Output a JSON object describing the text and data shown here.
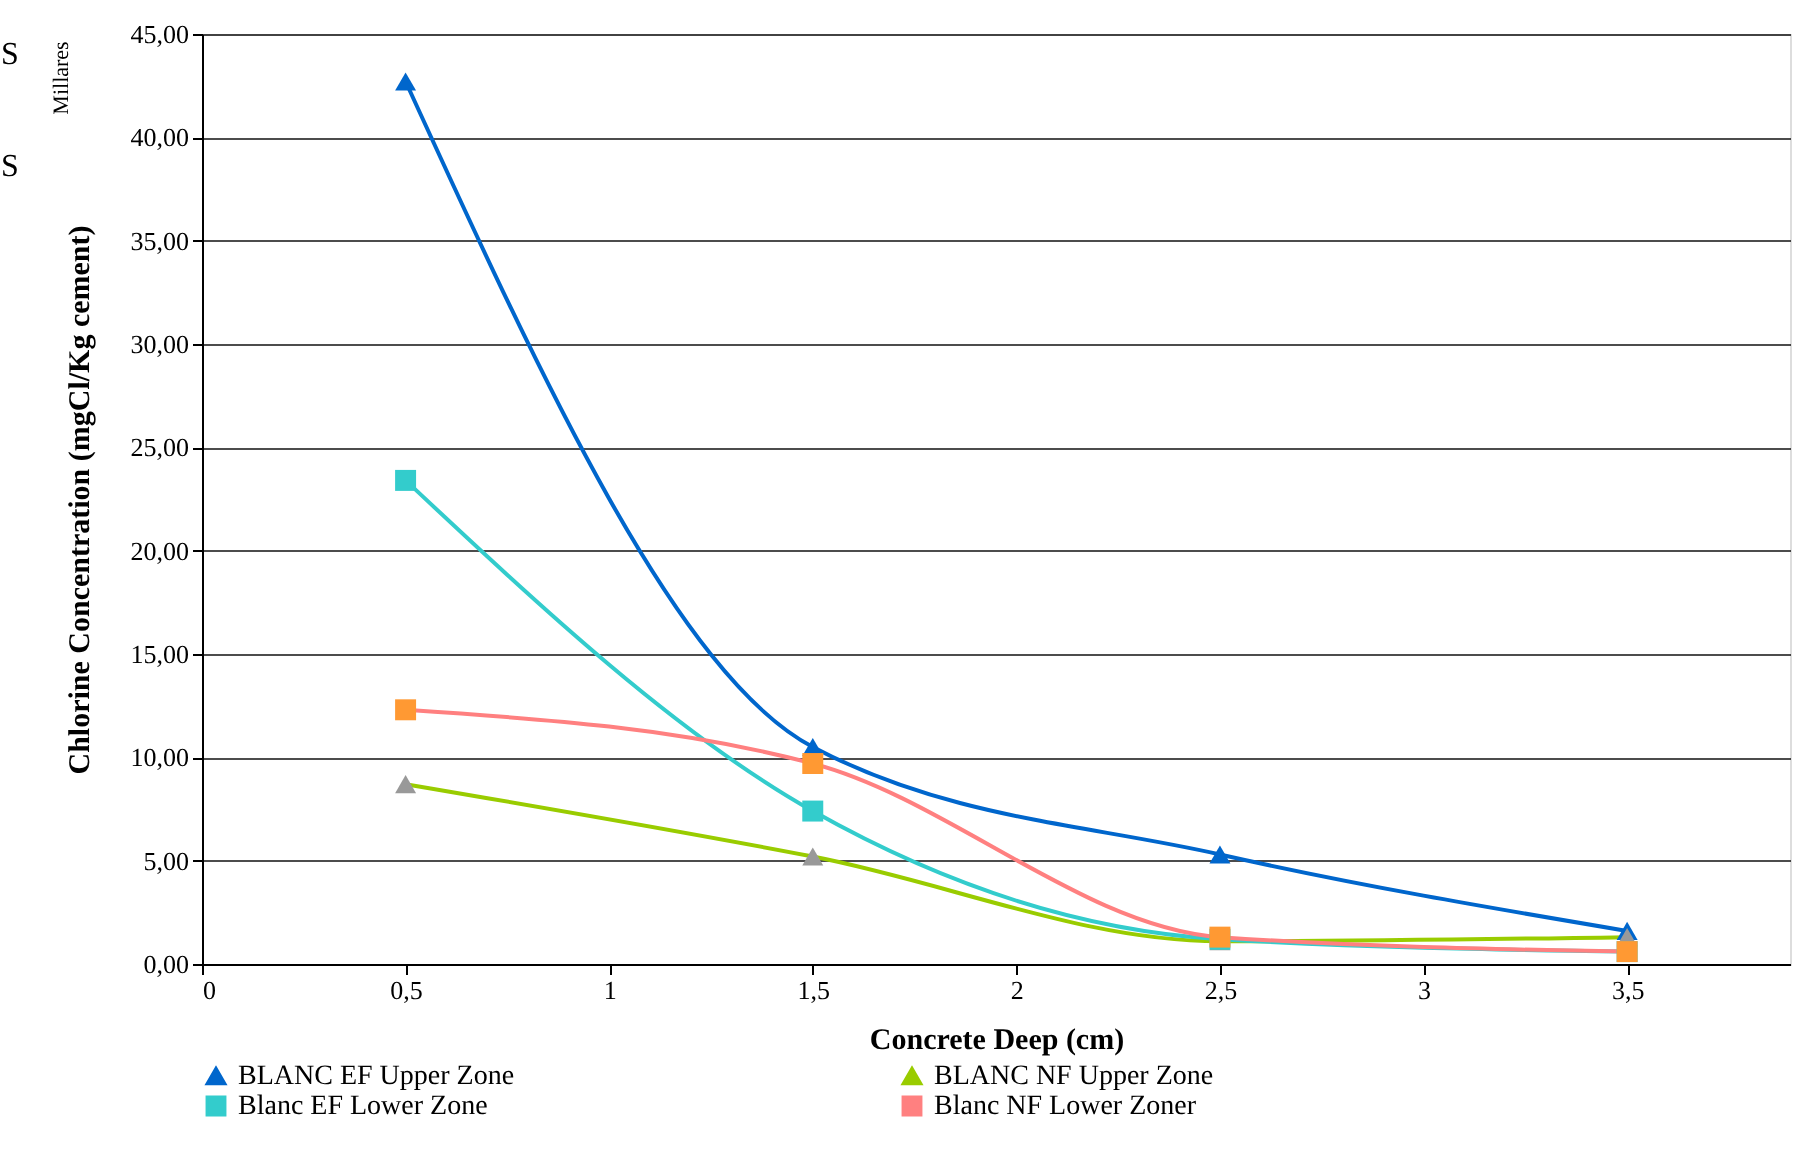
{
  "chart_data": {
    "type": "line",
    "xlabel": "Concrete Deep (cm)",
    "ylabel": "Chlorine Concentration (mgCl/Kg cement)",
    "annotations": [
      "Millares",
      "S",
      "S"
    ],
    "x": [
      0.5,
      1.5,
      2.5,
      3.5
    ],
    "series": [
      {
        "name": "BLANC EF Upper Zone",
        "color": "#0066cc",
        "marker": "triangle",
        "colors": [
          "#0066cc",
          "#0066cc",
          "#0066cc",
          "#0066cc"
        ],
        "values": [
          42.7,
          10.5,
          5.3,
          1.6
        ]
      },
      {
        "name": "BLANC NF Upper Zone",
        "color": "#99cc00",
        "marker": "triangle",
        "colors": [
          "#999999",
          "#999999",
          "#999999",
          "#999999"
        ],
        "values": [
          8.7,
          5.2,
          1.1,
          1.3
        ]
      },
      {
        "name": "Blanc EF Lower Zone",
        "color": "#33cccc",
        "marker": "square",
        "colors": [
          "#33cccc",
          "#33cccc",
          "#33cccc",
          "#33cccc"
        ],
        "values": [
          23.4,
          7.4,
          1.2,
          0.6
        ]
      },
      {
        "name": "Blanc NF Lower Zoner",
        "color": "#ff8080",
        "marker": "square",
        "colors": [
          "#ff9933",
          "#ff9933",
          "#ff9933",
          "#ff9933"
        ],
        "values": [
          12.3,
          9.7,
          1.3,
          0.6
        ]
      }
    ],
    "xlim": [
      0,
      3.9
    ],
    "xticks": [
      0,
      {
        "value": 0.5,
        "label": "0,5"
      },
      1,
      {
        "value": 1.5,
        "label": "1,5"
      },
      2,
      {
        "value": 2.5,
        "label": "2,5"
      },
      3,
      {
        "value": 3.5,
        "label": "3,5"
      }
    ],
    "ylim": [
      0,
      45
    ],
    "yticks": [
      {
        "value": 0,
        "label": "0,00"
      },
      {
        "value": 5,
        "label": "5,00"
      },
      {
        "value": 10,
        "label": "10,00"
      },
      {
        "value": 15,
        "label": "15,00"
      },
      {
        "value": 20,
        "label": "20,00"
      },
      {
        "value": 25,
        "label": "25,00"
      },
      {
        "value": 30,
        "label": "30,00"
      },
      {
        "value": 35,
        "label": "35,00"
      },
      {
        "value": 40,
        "label": "40,00"
      },
      {
        "value": 45,
        "label": "45,00"
      }
    ],
    "grid": "y",
    "legend": "bottom",
    "line_style": "solid"
  }
}
